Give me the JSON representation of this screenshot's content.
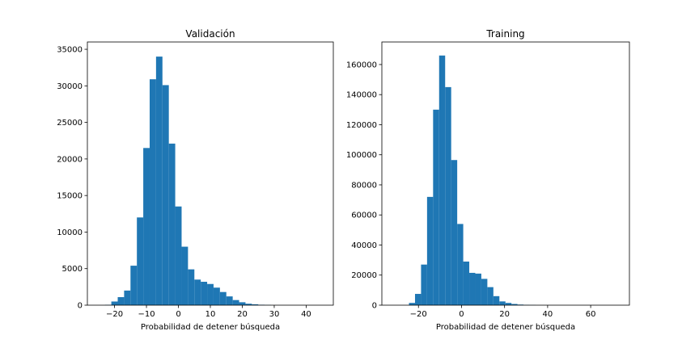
{
  "chart_data": [
    {
      "type": "bar",
      "title": "Validación",
      "xlabel": "Probabilidad de detener búsqueda",
      "ylabel": "",
      "xlim": [
        -28.5,
        48.5
      ],
      "ylim": [
        0,
        36000
      ],
      "xticks": [
        -20,
        -10,
        0,
        10,
        20,
        30,
        40
      ],
      "yticks": [
        0,
        5000,
        10000,
        15000,
        20000,
        25000,
        30000,
        35000
      ],
      "bin_width": 2,
      "bins": [
        {
          "x0": -23,
          "value": 50
        },
        {
          "x0": -21,
          "value": 500
        },
        {
          "x0": -19,
          "value": 1100
        },
        {
          "x0": -17,
          "value": 2000
        },
        {
          "x0": -15,
          "value": 5400
        },
        {
          "x0": -13,
          "value": 12000
        },
        {
          "x0": -11,
          "value": 21500
        },
        {
          "x0": -9,
          "value": 30900
        },
        {
          "x0": -7,
          "value": 34000
        },
        {
          "x0": -5,
          "value": 30100
        },
        {
          "x0": -3,
          "value": 22100
        },
        {
          "x0": -1,
          "value": 13500
        },
        {
          "x0": 1,
          "value": 8000
        },
        {
          "x0": 3,
          "value": 4900
        },
        {
          "x0": 5,
          "value": 3500
        },
        {
          "x0": 7,
          "value": 3200
        },
        {
          "x0": 9,
          "value": 2900
        },
        {
          "x0": 11,
          "value": 2400
        },
        {
          "x0": 13,
          "value": 1800
        },
        {
          "x0": 15,
          "value": 1200
        },
        {
          "x0": 17,
          "value": 700
        },
        {
          "x0": 19,
          "value": 400
        },
        {
          "x0": 21,
          "value": 200
        },
        {
          "x0": 23,
          "value": 120
        },
        {
          "x0": 25,
          "value": 60
        },
        {
          "x0": 27,
          "value": 30
        }
      ]
    },
    {
      "type": "bar",
      "title": "Training",
      "xlabel": "Probabilidad de detener búsqueda",
      "ylabel": "",
      "xlim": [
        -37,
        78
      ],
      "ylim": [
        0,
        175000
      ],
      "xticks": [
        -20,
        0,
        20,
        40,
        60
      ],
      "yticks": [
        0,
        20000,
        40000,
        60000,
        80000,
        100000,
        120000,
        140000,
        160000
      ],
      "bin_width": 2.8,
      "bins": [
        {
          "x0": -24.4,
          "value": 1500
        },
        {
          "x0": -21.6,
          "value": 7500
        },
        {
          "x0": -18.8,
          "value": 27000
        },
        {
          "x0": -16.0,
          "value": 72000
        },
        {
          "x0": -13.2,
          "value": 130000
        },
        {
          "x0": -10.4,
          "value": 166000
        },
        {
          "x0": -7.6,
          "value": 145000
        },
        {
          "x0": -4.8,
          "value": 96500
        },
        {
          "x0": -2.0,
          "value": 54000
        },
        {
          "x0": 0.8,
          "value": 29000
        },
        {
          "x0": 3.6,
          "value": 21500
        },
        {
          "x0": 6.4,
          "value": 21000
        },
        {
          "x0": 9.2,
          "value": 17500
        },
        {
          "x0": 12.0,
          "value": 12000
        },
        {
          "x0": 14.8,
          "value": 6000
        },
        {
          "x0": 17.6,
          "value": 2500
        },
        {
          "x0": 20.4,
          "value": 1500
        },
        {
          "x0": 23.2,
          "value": 800
        },
        {
          "x0": 26.0,
          "value": 400
        },
        {
          "x0": 28.8,
          "value": 200
        },
        {
          "x0": 31.6,
          "value": 100
        }
      ]
    }
  ],
  "colors": {
    "bar": "#1f77b4",
    "axes": "#000000",
    "background": "#ffffff"
  }
}
